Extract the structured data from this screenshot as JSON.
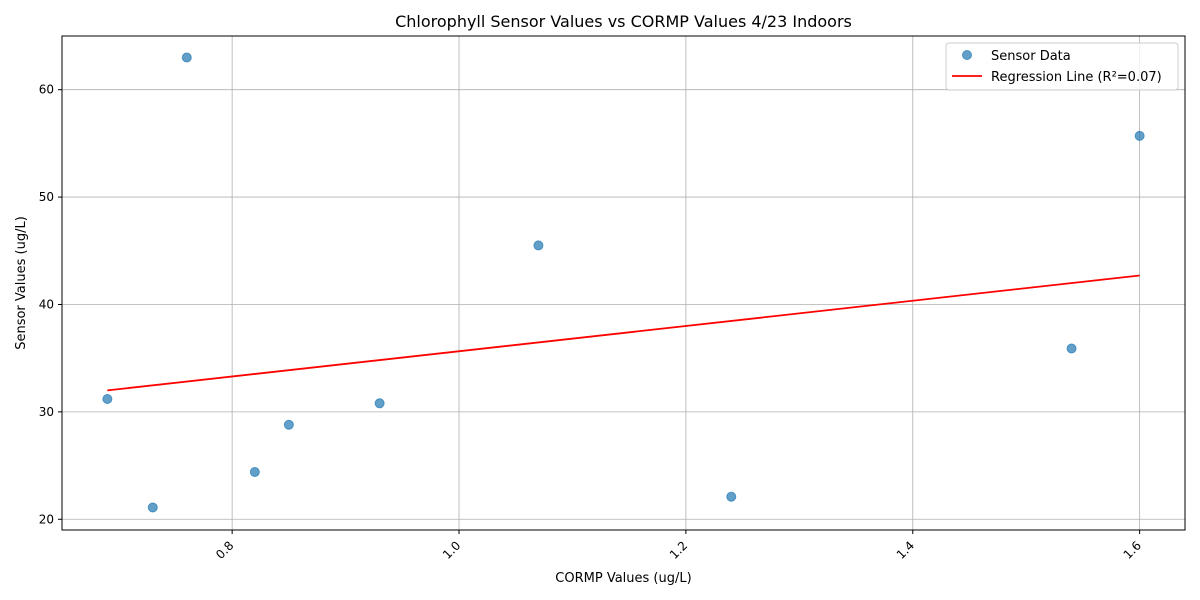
{
  "chart_data": {
    "type": "scatter",
    "title": "Chlorophyll Sensor Values vs CORMP Values 4/23 Indoors",
    "xlabel": "CORMP Values (ug/L)",
    "ylabel": "Sensor Values (ug/L)",
    "xlim": [
      0.65,
      1.64
    ],
    "ylim": [
      19,
      65
    ],
    "xticks": [
      0.8,
      1.0,
      1.2,
      1.4,
      1.6
    ],
    "xtick_labels": [
      "0.8",
      "1.0",
      "1.2",
      "1.4",
      "1.6"
    ],
    "yticks": [
      20,
      30,
      40,
      50,
      60
    ],
    "ytick_labels": [
      "20",
      "30",
      "40",
      "50",
      "60"
    ],
    "grid": true,
    "legend_position": "top-right",
    "series": [
      {
        "name": "Sensor Data",
        "kind": "scatter",
        "color": "#1f77b4",
        "x": [
          0.69,
          0.73,
          0.76,
          0.82,
          0.85,
          0.93,
          1.07,
          1.24,
          1.54,
          1.6
        ],
        "y": [
          31.2,
          21.1,
          63.0,
          24.4,
          28.8,
          30.8,
          45.5,
          22.1,
          35.9,
          55.7
        ]
      },
      {
        "name": "Regression Line (R²=0.07)",
        "kind": "line",
        "color": "#ff0000",
        "x": [
          0.69,
          1.6
        ],
        "y": [
          32.0,
          42.7
        ]
      }
    ]
  }
}
